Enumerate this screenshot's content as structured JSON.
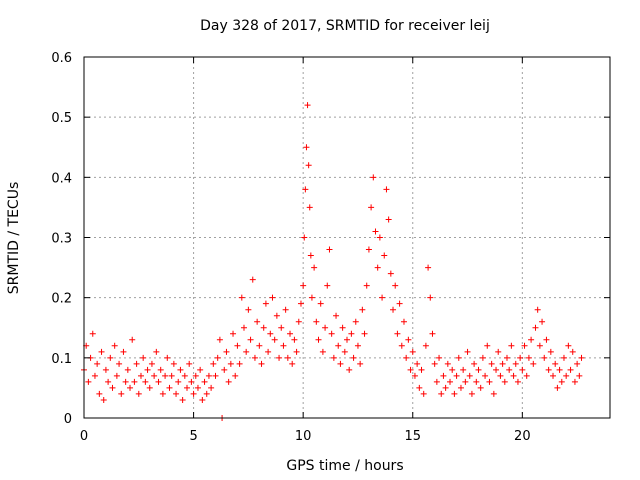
{
  "chart_data": {
    "type": "scatter",
    "title": "Day 328 of 2017, SRMTID for receiver leij",
    "xlabel": "GPS time / hours",
    "ylabel": "SRMTID / TECUs",
    "xlim": [
      0,
      24
    ],
    "ylim": [
      0,
      0.6
    ],
    "xticks": [
      0,
      5,
      10,
      15,
      20
    ],
    "yticks": [
      0,
      0.1,
      0.2,
      0.3,
      0.4,
      0.5,
      0.6
    ],
    "xtick_labels": [
      "0",
      "5",
      "10",
      "15",
      "20"
    ],
    "ytick_labels": [
      "0",
      "0.1",
      "0.2",
      "0.3",
      "0.4",
      "0.5",
      "0.6"
    ],
    "grid": true,
    "marker": "+",
    "color": "#ff0000",
    "series": [
      {
        "name": "SRMTID",
        "points": [
          [
            0.0,
            0.08
          ],
          [
            0.1,
            0.12
          ],
          [
            0.2,
            0.06
          ],
          [
            0.3,
            0.1
          ],
          [
            0.4,
            0.14
          ],
          [
            0.5,
            0.07
          ],
          [
            0.6,
            0.09
          ],
          [
            0.7,
            0.04
          ],
          [
            0.8,
            0.11
          ],
          [
            0.9,
            0.03
          ],
          [
            1.0,
            0.08
          ],
          [
            1.1,
            0.06
          ],
          [
            1.2,
            0.1
          ],
          [
            1.3,
            0.05
          ],
          [
            1.4,
            0.12
          ],
          [
            1.5,
            0.07
          ],
          [
            1.6,
            0.09
          ],
          [
            1.7,
            0.04
          ],
          [
            1.8,
            0.11
          ],
          [
            1.9,
            0.06
          ],
          [
            2.0,
            0.08
          ],
          [
            2.1,
            0.05
          ],
          [
            2.2,
            0.13
          ],
          [
            2.3,
            0.06
          ],
          [
            2.4,
            0.09
          ],
          [
            2.5,
            0.04
          ],
          [
            2.6,
            0.07
          ],
          [
            2.7,
            0.1
          ],
          [
            2.8,
            0.06
          ],
          [
            2.9,
            0.08
          ],
          [
            3.0,
            0.05
          ],
          [
            3.1,
            0.09
          ],
          [
            3.2,
            0.07
          ],
          [
            3.3,
            0.11
          ],
          [
            3.4,
            0.06
          ],
          [
            3.5,
            0.08
          ],
          [
            3.6,
            0.04
          ],
          [
            3.7,
            0.07
          ],
          [
            3.8,
            0.1
          ],
          [
            3.9,
            0.05
          ],
          [
            4.0,
            0.07
          ],
          [
            4.1,
            0.09
          ],
          [
            4.2,
            0.04
          ],
          [
            4.3,
            0.06
          ],
          [
            4.4,
            0.08
          ],
          [
            4.5,
            0.03
          ],
          [
            4.6,
            0.07
          ],
          [
            4.7,
            0.05
          ],
          [
            4.8,
            0.09
          ],
          [
            4.9,
            0.06
          ],
          [
            5.0,
            0.04
          ],
          [
            5.1,
            0.07
          ],
          [
            5.2,
            0.05
          ],
          [
            5.3,
            0.08
          ],
          [
            5.4,
            0.03
          ],
          [
            5.5,
            0.06
          ],
          [
            5.6,
            0.04
          ],
          [
            5.7,
            0.07
          ],
          [
            5.8,
            0.05
          ],
          [
            5.9,
            0.09
          ],
          [
            6.0,
            0.07
          ],
          [
            6.1,
            0.1
          ],
          [
            6.2,
            0.13
          ],
          [
            6.3,
            0.0
          ],
          [
            6.4,
            0.08
          ],
          [
            6.5,
            0.11
          ],
          [
            6.6,
            0.06
          ],
          [
            6.7,
            0.09
          ],
          [
            6.8,
            0.14
          ],
          [
            6.9,
            0.07
          ],
          [
            7.0,
            0.12
          ],
          [
            7.1,
            0.09
          ],
          [
            7.2,
            0.2
          ],
          [
            7.3,
            0.15
          ],
          [
            7.4,
            0.11
          ],
          [
            7.5,
            0.18
          ],
          [
            7.6,
            0.13
          ],
          [
            7.7,
            0.23
          ],
          [
            7.8,
            0.1
          ],
          [
            7.9,
            0.16
          ],
          [
            8.0,
            0.12
          ],
          [
            8.1,
            0.09
          ],
          [
            8.2,
            0.15
          ],
          [
            8.3,
            0.19
          ],
          [
            8.4,
            0.11
          ],
          [
            8.5,
            0.14
          ],
          [
            8.6,
            0.2
          ],
          [
            8.7,
            0.13
          ],
          [
            8.8,
            0.17
          ],
          [
            8.9,
            0.1
          ],
          [
            9.0,
            0.15
          ],
          [
            9.1,
            0.12
          ],
          [
            9.2,
            0.18
          ],
          [
            9.3,
            0.1
          ],
          [
            9.4,
            0.14
          ],
          [
            9.5,
            0.09
          ],
          [
            9.6,
            0.13
          ],
          [
            9.7,
            0.11
          ],
          [
            9.8,
            0.16
          ],
          [
            9.9,
            0.19
          ],
          [
            10.0,
            0.22
          ],
          [
            10.05,
            0.3
          ],
          [
            10.1,
            0.38
          ],
          [
            10.15,
            0.45
          ],
          [
            10.2,
            0.52
          ],
          [
            10.25,
            0.42
          ],
          [
            10.3,
            0.35
          ],
          [
            10.35,
            0.27
          ],
          [
            10.4,
            0.2
          ],
          [
            10.5,
            0.25
          ],
          [
            10.6,
            0.16
          ],
          [
            10.7,
            0.13
          ],
          [
            10.8,
            0.19
          ],
          [
            10.9,
            0.11
          ],
          [
            11.0,
            0.15
          ],
          [
            11.1,
            0.22
          ],
          [
            11.2,
            0.28
          ],
          [
            11.3,
            0.14
          ],
          [
            11.4,
            0.1
          ],
          [
            11.5,
            0.17
          ],
          [
            11.6,
            0.12
          ],
          [
            11.7,
            0.09
          ],
          [
            11.8,
            0.15
          ],
          [
            11.9,
            0.11
          ],
          [
            12.0,
            0.13
          ],
          [
            12.1,
            0.08
          ],
          [
            12.2,
            0.14
          ],
          [
            12.3,
            0.1
          ],
          [
            12.4,
            0.16
          ],
          [
            12.5,
            0.12
          ],
          [
            12.6,
            0.09
          ],
          [
            12.7,
            0.18
          ],
          [
            12.8,
            0.14
          ],
          [
            12.9,
            0.22
          ],
          [
            13.0,
            0.28
          ],
          [
            13.1,
            0.35
          ],
          [
            13.2,
            0.4
          ],
          [
            13.3,
            0.31
          ],
          [
            13.4,
            0.25
          ],
          [
            13.5,
            0.3
          ],
          [
            13.6,
            0.2
          ],
          [
            13.7,
            0.27
          ],
          [
            13.8,
            0.38
          ],
          [
            13.9,
            0.33
          ],
          [
            14.0,
            0.24
          ],
          [
            14.1,
            0.18
          ],
          [
            14.2,
            0.22
          ],
          [
            14.3,
            0.14
          ],
          [
            14.4,
            0.19
          ],
          [
            14.5,
            0.12
          ],
          [
            14.6,
            0.16
          ],
          [
            14.7,
            0.1
          ],
          [
            14.8,
            0.13
          ],
          [
            14.9,
            0.08
          ],
          [
            15.0,
            0.11
          ],
          [
            15.1,
            0.07
          ],
          [
            15.2,
            0.09
          ],
          [
            15.3,
            0.05
          ],
          [
            15.4,
            0.08
          ],
          [
            15.5,
            0.04
          ],
          [
            15.6,
            0.12
          ],
          [
            15.7,
            0.25
          ],
          [
            15.8,
            0.2
          ],
          [
            15.9,
            0.14
          ],
          [
            16.0,
            0.09
          ],
          [
            16.1,
            0.06
          ],
          [
            16.2,
            0.1
          ],
          [
            16.3,
            0.04
          ],
          [
            16.4,
            0.07
          ],
          [
            16.5,
            0.05
          ],
          [
            16.6,
            0.09
          ],
          [
            16.7,
            0.06
          ],
          [
            16.8,
            0.08
          ],
          [
            16.9,
            0.04
          ],
          [
            17.0,
            0.07
          ],
          [
            17.1,
            0.1
          ],
          [
            17.2,
            0.05
          ],
          [
            17.3,
            0.08
          ],
          [
            17.4,
            0.06
          ],
          [
            17.5,
            0.11
          ],
          [
            17.6,
            0.07
          ],
          [
            17.7,
            0.04
          ],
          [
            17.8,
            0.09
          ],
          [
            17.9,
            0.06
          ],
          [
            18.0,
            0.08
          ],
          [
            18.1,
            0.05
          ],
          [
            18.2,
            0.1
          ],
          [
            18.3,
            0.07
          ],
          [
            18.4,
            0.12
          ],
          [
            18.5,
            0.06
          ],
          [
            18.6,
            0.09
          ],
          [
            18.7,
            0.04
          ],
          [
            18.8,
            0.08
          ],
          [
            18.9,
            0.11
          ],
          [
            19.0,
            0.07
          ],
          [
            19.1,
            0.09
          ],
          [
            19.2,
            0.06
          ],
          [
            19.3,
            0.1
          ],
          [
            19.4,
            0.08
          ],
          [
            19.5,
            0.12
          ],
          [
            19.6,
            0.07
          ],
          [
            19.7,
            0.09
          ],
          [
            19.8,
            0.06
          ],
          [
            19.9,
            0.1
          ],
          [
            20.0,
            0.08
          ],
          [
            20.1,
            0.12
          ],
          [
            20.2,
            0.07
          ],
          [
            20.3,
            0.1
          ],
          [
            20.4,
            0.13
          ],
          [
            20.5,
            0.09
          ],
          [
            20.6,
            0.15
          ],
          [
            20.7,
            0.18
          ],
          [
            20.8,
            0.12
          ],
          [
            20.9,
            0.16
          ],
          [
            21.0,
            0.1
          ],
          [
            21.1,
            0.13
          ],
          [
            21.2,
            0.08
          ],
          [
            21.3,
            0.11
          ],
          [
            21.4,
            0.07
          ],
          [
            21.5,
            0.09
          ],
          [
            21.6,
            0.05
          ],
          [
            21.7,
            0.08
          ],
          [
            21.8,
            0.06
          ],
          [
            21.9,
            0.1
          ],
          [
            22.0,
            0.07
          ],
          [
            22.1,
            0.12
          ],
          [
            22.2,
            0.08
          ],
          [
            22.3,
            0.11
          ],
          [
            22.4,
            0.06
          ],
          [
            22.5,
            0.09
          ],
          [
            22.6,
            0.07
          ],
          [
            22.7,
            0.1
          ]
        ]
      }
    ]
  }
}
